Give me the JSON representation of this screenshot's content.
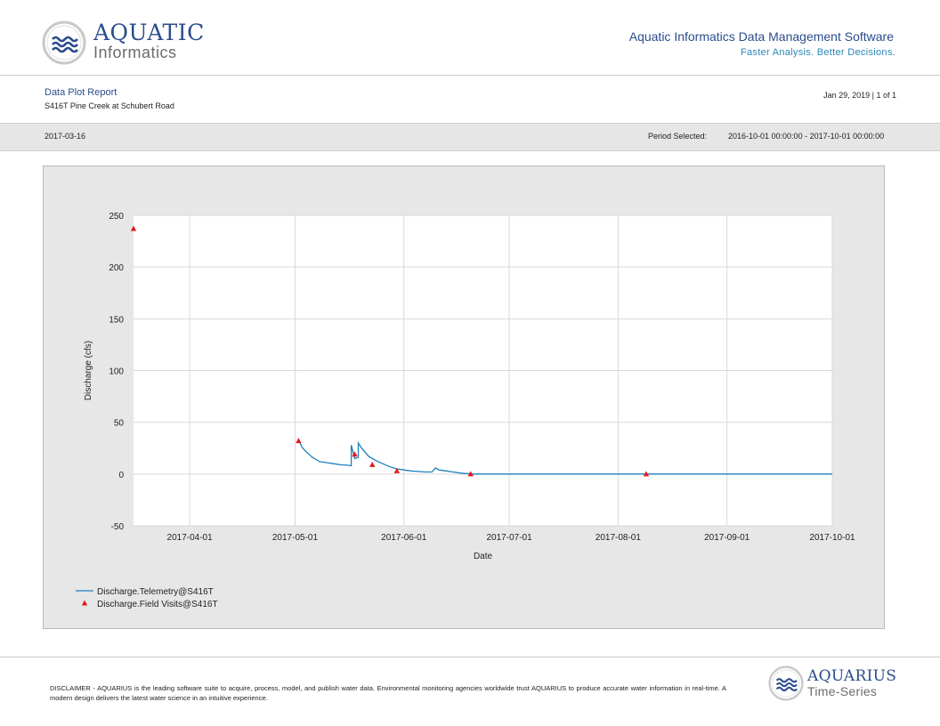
{
  "header": {
    "logo_title": "AQUATIC",
    "logo_sub": "Informatics",
    "app_title": "Aquatic Informatics Data Management Software",
    "tagline": "Faster Analysis. Better Decisions."
  },
  "report": {
    "title": "Data Plot Report",
    "location": "S416T Pine Creek at Schubert Road",
    "print_date": "Jan 29, 2019 | 1 of 1"
  },
  "band": {
    "date": "2017-03-16",
    "period_label": "Period Selected:",
    "period_value": "2016-10-01 00:00:00 - 2017-10-01 00:00:00"
  },
  "footer": {
    "disclaimer": "DISCLAIMER - AQUARIUS is the leading software suite to acquire, process, model, and publish water data. Environmental monitoring agencies worldwide trust AQUARIUS to produce accurate water information in real-time. A modern design delivers the latest water science in an intuitive experience.",
    "logo_title": "AQUARIUS",
    "logo_sub": "Time-Series"
  },
  "colors": {
    "brand": "#2b4c8c",
    "line_series": "#1f7fbf",
    "marker_series": "#e31b1b"
  },
  "chart_data": {
    "type": "line",
    "title": "",
    "xlabel": "Date",
    "ylabel": "Discharge (cfs)",
    "xlim": [
      "2017-03-16",
      "2017-10-01"
    ],
    "ylim": [
      -50,
      250
    ],
    "yticks": [
      -50,
      0,
      50,
      100,
      150,
      200,
      250
    ],
    "xticks": [
      "2017-04-01",
      "2017-05-01",
      "2017-06-01",
      "2017-07-01",
      "2017-08-01",
      "2017-09-01",
      "2017-10-01"
    ],
    "grid": true,
    "legend_position": "bottom-left",
    "series": [
      {
        "name": "Discharge.Telemetry@S416T",
        "style": "line",
        "points": [
          [
            "2017-05-02",
            33
          ],
          [
            "2017-05-03",
            26
          ],
          [
            "2017-05-04",
            22
          ],
          [
            "2017-05-05",
            19
          ],
          [
            "2017-05-06",
            16
          ],
          [
            "2017-05-07",
            14
          ],
          [
            "2017-05-08",
            12
          ],
          [
            "2017-05-10",
            11
          ],
          [
            "2017-05-12",
            10
          ],
          [
            "2017-05-14",
            9
          ],
          [
            "2017-05-16",
            8.5
          ],
          [
            "2017-05-17",
            8
          ],
          [
            "2017-05-17",
            28
          ],
          [
            "2017-05-18",
            15
          ],
          [
            "2017-05-19",
            16
          ],
          [
            "2017-05-19",
            30
          ],
          [
            "2017-05-20",
            25
          ],
          [
            "2017-05-21",
            21
          ],
          [
            "2017-05-22",
            17
          ],
          [
            "2017-05-24",
            13
          ],
          [
            "2017-05-26",
            10
          ],
          [
            "2017-05-28",
            7
          ],
          [
            "2017-05-30",
            5
          ],
          [
            "2017-06-01",
            4
          ],
          [
            "2017-06-03",
            3
          ],
          [
            "2017-06-05",
            2.5
          ],
          [
            "2017-06-07",
            2
          ],
          [
            "2017-06-09",
            2
          ],
          [
            "2017-06-10",
            6
          ],
          [
            "2017-06-11",
            4
          ],
          [
            "2017-06-13",
            3
          ],
          [
            "2017-06-15",
            2
          ],
          [
            "2017-06-17",
            1
          ],
          [
            "2017-06-19",
            0.5
          ],
          [
            "2017-06-21",
            0
          ],
          [
            "2017-07-01",
            0
          ],
          [
            "2017-08-01",
            0
          ],
          [
            "2017-09-01",
            0
          ],
          [
            "2017-10-01",
            0
          ]
        ]
      },
      {
        "name": "Discharge.Field Visits@S416T",
        "style": "marker",
        "points": [
          [
            "2017-03-16",
            237
          ],
          [
            "2017-05-02",
            32
          ],
          [
            "2017-05-18",
            19
          ],
          [
            "2017-05-23",
            9
          ],
          [
            "2017-05-30",
            3
          ],
          [
            "2017-06-20",
            0
          ],
          [
            "2017-08-09",
            0
          ]
        ]
      }
    ]
  }
}
